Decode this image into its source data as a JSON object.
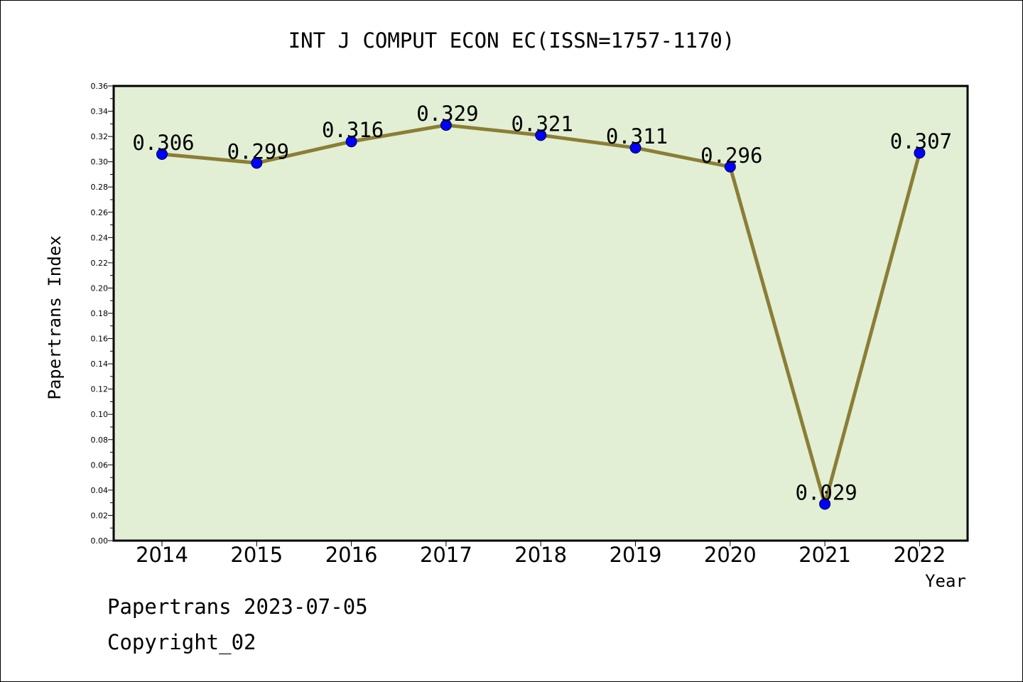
{
  "chart_data": {
    "type": "line",
    "title": "INT J COMPUT ECON EC(ISSN=1757-1170)",
    "xlabel": "Year",
    "ylabel": "Papertrans Index",
    "categories": [
      "2014",
      "2015",
      "2016",
      "2017",
      "2018",
      "2019",
      "2020",
      "2021",
      "2022"
    ],
    "values": [
      0.306,
      0.299,
      0.316,
      0.329,
      0.321,
      0.311,
      0.296,
      0.029,
      0.307
    ],
    "data_labels": [
      "0.306",
      "0.299",
      "0.316",
      "0.329",
      "0.321",
      "0.311",
      "0.296",
      "0.029",
      "0.307"
    ],
    "ylim": [
      0,
      0.36
    ],
    "y_ticks": [
      "0.00",
      "0.02",
      "0.04",
      "0.06",
      "0.08",
      "0.10",
      "0.12",
      "0.14",
      "0.16",
      "0.18",
      "0.20",
      "0.22",
      "0.24",
      "0.26",
      "0.28",
      "0.30",
      "0.32",
      "0.34",
      "0.36"
    ],
    "grid": false,
    "legend": "none",
    "colors": {
      "plot_background": "#e2efd5",
      "line": "#8b7e35",
      "marker": "#0000ff",
      "frame": "#000000"
    }
  },
  "footer": {
    "line1": "Papertrans 2023-07-05",
    "line2": "Copyright_02"
  }
}
